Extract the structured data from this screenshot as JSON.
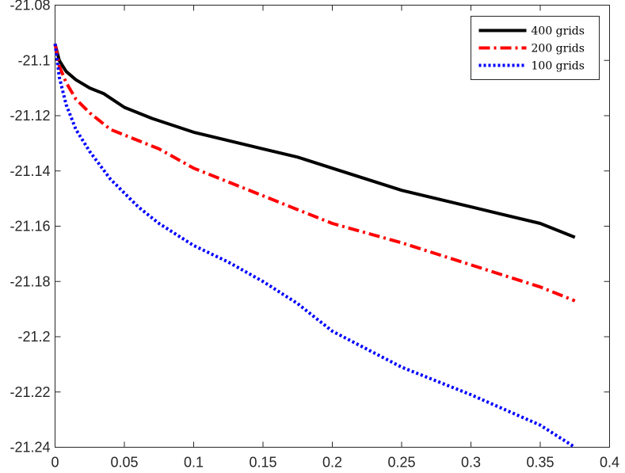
{
  "chart_data": {
    "type": "line",
    "title": "",
    "xlabel": "",
    "ylabel": "",
    "xlim": [
      0,
      0.4
    ],
    "ylim": [
      -21.24,
      -21.08
    ],
    "xticks": [
      0,
      0.05,
      0.1,
      0.15,
      0.2,
      0.25,
      0.3,
      0.35,
      0.4
    ],
    "xtick_labels": [
      "0",
      "0.05",
      "0.1",
      "0.15",
      "0.2",
      "0.25",
      "0.3",
      "0.35",
      "0.4"
    ],
    "yticks": [
      -21.24,
      -21.22,
      -21.2,
      -21.18,
      -21.16,
      -21.14,
      -21.12,
      -21.1,
      -21.08
    ],
    "ytick_labels": [
      "-21.24",
      "-21.22",
      "-21.2",
      "-21.18",
      "-21.16",
      "-21.14",
      "-21.12",
      "-21.1",
      "-21.08"
    ],
    "grid": false,
    "legend_position": "top-right",
    "series": [
      {
        "name": "400 grids",
        "color": "#000000",
        "dash": "solid",
        "x": [
          0,
          0.003,
          0.008,
          0.015,
          0.025,
          0.035,
          0.05,
          0.07,
          0.1,
          0.125,
          0.15,
          0.175,
          0.2,
          0.25,
          0.3,
          0.35,
          0.375
        ],
        "y": [
          -21.094,
          -21.1,
          -21.104,
          -21.107,
          -21.11,
          -21.112,
          -21.117,
          -21.121,
          -21.126,
          -21.129,
          -21.132,
          -21.135,
          -21.139,
          -21.147,
          -21.153,
          -21.159,
          -21.164
        ]
      },
      {
        "name": "200 grids",
        "color": "#ff0000",
        "dash": "dashdot",
        "x": [
          0,
          0.003,
          0.008,
          0.015,
          0.025,
          0.04,
          0.06,
          0.075,
          0.1,
          0.125,
          0.15,
          0.175,
          0.2,
          0.25,
          0.3,
          0.35,
          0.375
        ],
        "y": [
          -21.094,
          -21.102,
          -21.108,
          -21.114,
          -21.119,
          -21.125,
          -21.129,
          -21.132,
          -21.139,
          -21.144,
          -21.149,
          -21.154,
          -21.159,
          -21.166,
          -21.174,
          -21.182,
          -21.187
        ]
      },
      {
        "name": "100 grids",
        "color": "#0000ff",
        "dash": "dotted",
        "x": [
          0,
          0.003,
          0.008,
          0.015,
          0.025,
          0.04,
          0.06,
          0.075,
          0.1,
          0.125,
          0.15,
          0.175,
          0.2,
          0.25,
          0.3,
          0.35,
          0.375
        ],
        "y": [
          -21.094,
          -21.106,
          -21.116,
          -21.125,
          -21.133,
          -21.143,
          -21.153,
          -21.159,
          -21.167,
          -21.173,
          -21.18,
          -21.188,
          -21.198,
          -21.211,
          -21.221,
          -21.232,
          -21.24
        ]
      }
    ]
  }
}
